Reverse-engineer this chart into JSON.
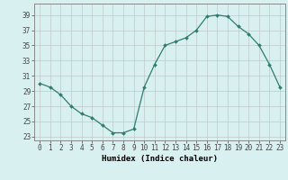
{
  "x": [
    0,
    1,
    2,
    3,
    4,
    5,
    6,
    7,
    8,
    9,
    10,
    11,
    12,
    13,
    14,
    15,
    16,
    17,
    18,
    19,
    20,
    21,
    22,
    23
  ],
  "y": [
    30.0,
    29.5,
    28.5,
    27.0,
    26.0,
    25.5,
    24.5,
    23.5,
    23.5,
    24.0,
    29.5,
    32.5,
    35.0,
    35.5,
    36.0,
    37.0,
    38.8,
    39.0,
    38.8,
    37.5,
    36.5,
    35.0,
    32.5,
    29.5
  ],
  "line_color": "#2e7d6e",
  "marker": "D",
  "markersize": 2.0,
  "linewidth": 0.9,
  "xlabel": "Humidex (Indice chaleur)",
  "xlim": [
    -0.5,
    23.5
  ],
  "ylim": [
    22.5,
    40.5
  ],
  "yticks": [
    23,
    25,
    27,
    29,
    31,
    33,
    35,
    37,
    39
  ],
  "xticks": [
    0,
    1,
    2,
    3,
    4,
    5,
    6,
    7,
    8,
    9,
    10,
    11,
    12,
    13,
    14,
    15,
    16,
    17,
    18,
    19,
    20,
    21,
    22,
    23
  ],
  "bg_color": "#d8f0f0",
  "grid_color": "#c0c8c8",
  "tick_fontsize": 5.5,
  "xlabel_fontsize": 6.5,
  "font_family": "monospace"
}
